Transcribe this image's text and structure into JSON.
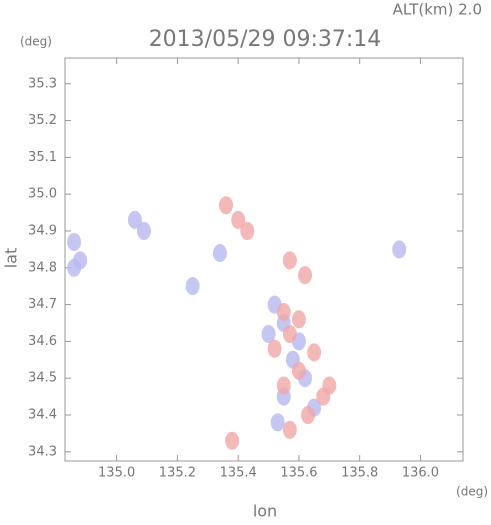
{
  "chart_data": {
    "type": "scatter",
    "title": "2013/05/29 09:37:14",
    "annotation": "ALT(km) 2.0",
    "y_unit": "(deg)",
    "x_unit": "(deg)",
    "xlabel": "lon",
    "ylabel": "lat",
    "xlim": [
      134.83,
      136.14
    ],
    "ylim": [
      34.275,
      35.37
    ],
    "xticks": [
      {
        "value": 135,
        "label": "135.0"
      },
      135.2,
      135.4,
      135.6,
      135.8,
      {
        "value": 136,
        "label": "136.0"
      }
    ],
    "yticks": [
      34.3,
      34.4,
      {
        "value": 34.5,
        "label": "34.5"
      },
      34.6,
      34.7,
      34.8,
      34.9,
      {
        "value": 35,
        "label": "35.0"
      },
      35.1,
      35.2,
      35.3
    ],
    "series": [
      {
        "color": "#b8b8f0",
        "x": [
          134.86,
          134.88,
          134.86,
          135.06,
          135.09,
          135.34,
          135.25,
          135.52,
          135.55,
          135.58,
          135.62,
          135.55,
          135.65,
          135.6,
          135.5,
          135.93,
          135.53
        ],
        "y": [
          34.87,
          34.82,
          34.8,
          34.93,
          34.9,
          34.84,
          34.75,
          34.7,
          34.65,
          34.55,
          34.5,
          34.45,
          34.42,
          34.6,
          34.62,
          34.85,
          34.38
        ]
      },
      {
        "color": "#f0a8a8",
        "x": [
          135.36,
          135.4,
          135.43,
          135.57,
          135.62,
          135.55,
          135.6,
          135.52,
          135.57,
          135.65,
          135.6,
          135.55,
          135.68,
          135.63,
          135.57,
          135.38,
          135.7
        ],
        "y": [
          34.97,
          34.93,
          34.9,
          34.82,
          34.78,
          34.68,
          34.66,
          34.58,
          34.62,
          34.57,
          34.52,
          34.48,
          34.45,
          34.4,
          34.36,
          34.33,
          34.48
        ]
      }
    ]
  }
}
